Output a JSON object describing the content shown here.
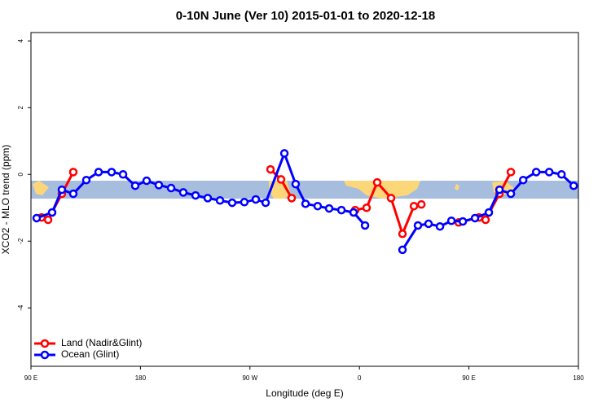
{
  "chart_data": {
    "type": "line",
    "title": "0-10N June (Ver 10)   2015-01-01 to 2020-12-18",
    "x_label": "Longitude (deg E)",
    "y_label": "XCO2 - MLO trend (ppm)",
    "xlim": [
      90,
      540
    ],
    "ylim": [
      -5.75,
      4.25
    ],
    "xticks": [
      {
        "value": 90,
        "label": "90 E"
      },
      180,
      {
        "value": 270,
        "label": "90 W"
      },
      {
        "value": 360,
        "label": "0"
      },
      {
        "value": 450,
        "label": "90 E"
      },
      {
        "value": 540,
        "label": "180"
      }
    ],
    "yticks": [
      4,
      2,
      0,
      -2,
      -4
    ],
    "legend": "bottom-left",
    "series": [
      {
        "name": "Land (Nadir&Glint)",
        "color": "#ff0000",
        "x": [
          98.7,
          104.1,
          115.4,
          124.8,
          null,
          286.9,
          295.6,
          304.3,
          null,
          356.5,
          365.9,
          374.6,
          386.0,
          395.4,
          404.8,
          410.9,
          null,
          441.6,
          458.3,
          463.7,
          475.1,
          484.5
        ],
        "values": [
          -1.29,
          -1.36,
          -0.58,
          0.07,
          null,
          0.15,
          -0.15,
          -0.71,
          null,
          -1.07,
          -1.0,
          -0.24,
          -0.71,
          -1.78,
          -0.95,
          -0.9,
          null,
          -1.44,
          -1.29,
          -1.36,
          -0.58,
          0.07
        ]
      },
      {
        "name": "Ocean (Glint)",
        "color": "#0000ff",
        "x": [
          94.7,
          107.4,
          115.4,
          124.8,
          135.5,
          145.6,
          156.3,
          165.7,
          175.7,
          185.1,
          195.1,
          205.2,
          215.2,
          225.3,
          235.3,
          245.4,
          255.4,
          265.4,
          274.8,
          282.9,
          298.3,
          307.6,
          315.7,
          325.7,
          335.1,
          345.2,
          355.2,
          364.6,
          null,
          395.4,
          408.1,
          416.8,
          426.2,
          435.6,
          445.0,
          455.0,
          466.4,
          475.1,
          484.5,
          494.6,
          505.3,
          516.0,
          526.1,
          536.1
        ],
        "values": [
          -1.31,
          -1.14,
          -0.46,
          -0.58,
          -0.17,
          0.07,
          0.07,
          0.0,
          -0.34,
          -0.19,
          -0.32,
          -0.41,
          -0.54,
          -0.63,
          -0.71,
          -0.78,
          -0.85,
          -0.83,
          -0.75,
          -0.85,
          0.63,
          -0.29,
          -0.88,
          -0.95,
          -1.02,
          -1.07,
          -1.14,
          -1.53,
          null,
          -2.26,
          -1.53,
          -1.48,
          -1.56,
          -1.39,
          -1.41,
          -1.31,
          -1.14,
          -0.46,
          -0.58,
          -0.17,
          0.07,
          0.07,
          0.0,
          -0.34
        ]
      }
    ]
  }
}
